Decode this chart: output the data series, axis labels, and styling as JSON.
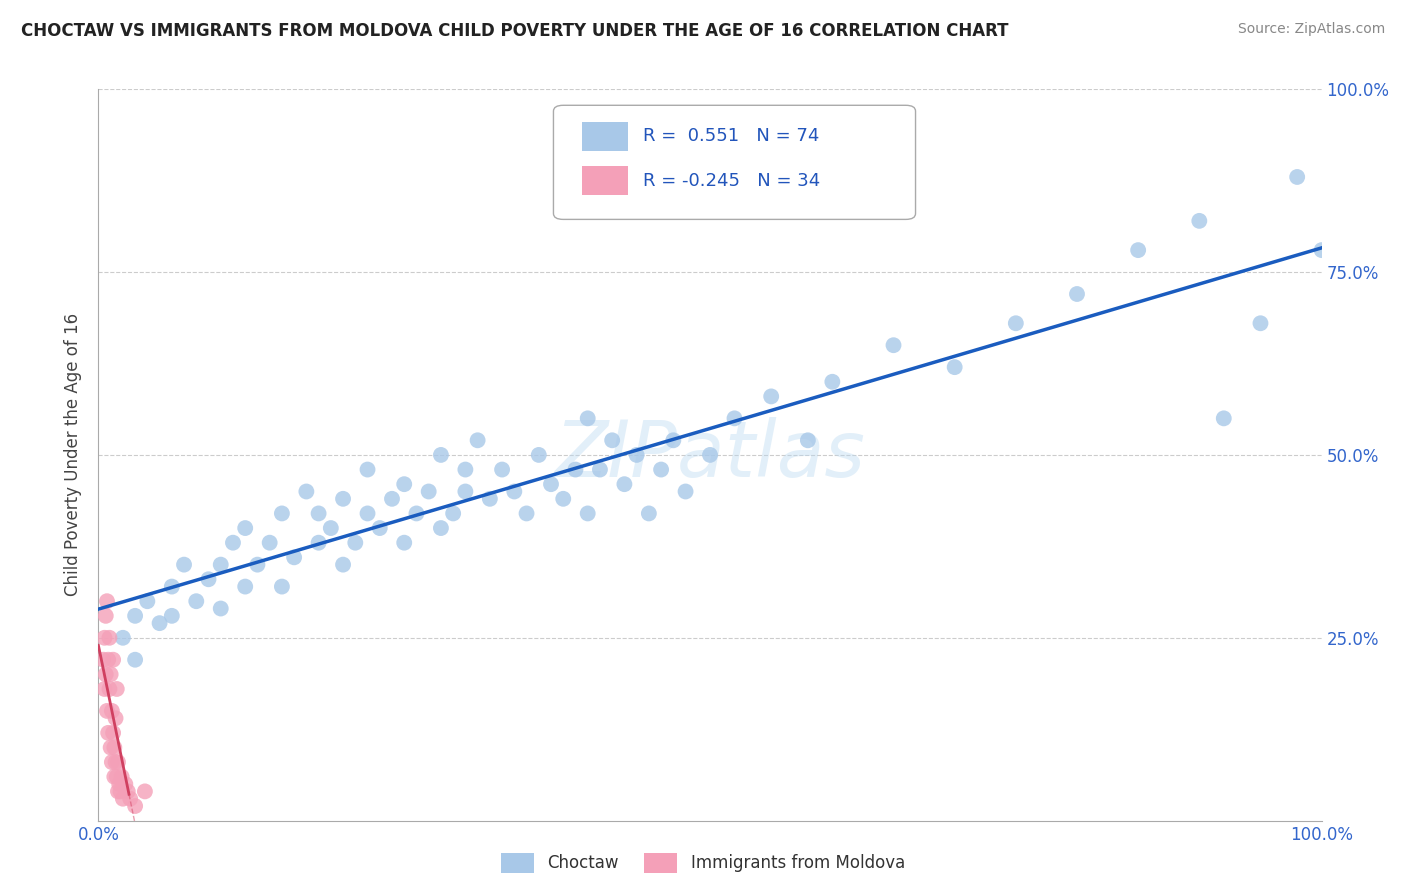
{
  "title": "CHOCTAW VS IMMIGRANTS FROM MOLDOVA CHILD POVERTY UNDER THE AGE OF 16 CORRELATION CHART",
  "source": "Source: ZipAtlas.com",
  "ylabel": "Child Poverty Under the Age of 16",
  "xlim": [
    0,
    1.0
  ],
  "ylim": [
    0,
    1.0
  ],
  "background_color": "#ffffff",
  "grid_color": "#cccccc",
  "watermark": "ZIPatlas",
  "choctaw_color": "#a8c8e8",
  "moldova_color": "#f4a0b8",
  "choctaw_line_color": "#1a5cbf",
  "moldova_line_color": "#d04060",
  "choctaw_R": 0.551,
  "choctaw_N": 74,
  "moldova_R": -0.245,
  "moldova_N": 34,
  "choctaw_x": [
    0.02,
    0.03,
    0.03,
    0.04,
    0.05,
    0.06,
    0.06,
    0.07,
    0.08,
    0.09,
    0.1,
    0.1,
    0.11,
    0.12,
    0.12,
    0.13,
    0.14,
    0.15,
    0.15,
    0.16,
    0.17,
    0.18,
    0.18,
    0.19,
    0.2,
    0.2,
    0.21,
    0.22,
    0.22,
    0.23,
    0.24,
    0.25,
    0.25,
    0.26,
    0.27,
    0.28,
    0.28,
    0.29,
    0.3,
    0.3,
    0.31,
    0.32,
    0.33,
    0.34,
    0.35,
    0.36,
    0.37,
    0.38,
    0.39,
    0.4,
    0.4,
    0.41,
    0.42,
    0.43,
    0.44,
    0.45,
    0.46,
    0.47,
    0.48,
    0.5,
    0.52,
    0.55,
    0.58,
    0.6,
    0.65,
    0.7,
    0.75,
    0.8,
    0.85,
    0.9,
    0.92,
    0.95,
    0.98,
    1.0
  ],
  "choctaw_y": [
    0.25,
    0.22,
    0.28,
    0.3,
    0.27,
    0.32,
    0.28,
    0.35,
    0.3,
    0.33,
    0.29,
    0.35,
    0.38,
    0.32,
    0.4,
    0.35,
    0.38,
    0.32,
    0.42,
    0.36,
    0.45,
    0.38,
    0.42,
    0.4,
    0.35,
    0.44,
    0.38,
    0.42,
    0.48,
    0.4,
    0.44,
    0.38,
    0.46,
    0.42,
    0.45,
    0.4,
    0.5,
    0.42,
    0.45,
    0.48,
    0.52,
    0.44,
    0.48,
    0.45,
    0.42,
    0.5,
    0.46,
    0.44,
    0.48,
    0.42,
    0.55,
    0.48,
    0.52,
    0.46,
    0.5,
    0.42,
    0.48,
    0.52,
    0.45,
    0.5,
    0.55,
    0.58,
    0.52,
    0.6,
    0.65,
    0.62,
    0.68,
    0.72,
    0.78,
    0.82,
    0.55,
    0.68,
    0.88,
    0.78
  ],
  "moldova_x": [
    0.004,
    0.005,
    0.005,
    0.006,
    0.006,
    0.007,
    0.007,
    0.008,
    0.008,
    0.009,
    0.009,
    0.01,
    0.01,
    0.011,
    0.011,
    0.012,
    0.012,
    0.013,
    0.013,
    0.014,
    0.014,
    0.015,
    0.015,
    0.016,
    0.016,
    0.017,
    0.018,
    0.019,
    0.02,
    0.022,
    0.024,
    0.026,
    0.03,
    0.038
  ],
  "moldova_y": [
    0.22,
    0.18,
    0.25,
    0.28,
    0.2,
    0.3,
    0.15,
    0.22,
    0.12,
    0.18,
    0.25,
    0.1,
    0.2,
    0.08,
    0.15,
    0.12,
    0.22,
    0.06,
    0.1,
    0.08,
    0.14,
    0.06,
    0.18,
    0.04,
    0.08,
    0.05,
    0.04,
    0.06,
    0.03,
    0.05,
    0.04,
    0.03,
    0.02,
    0.04
  ]
}
